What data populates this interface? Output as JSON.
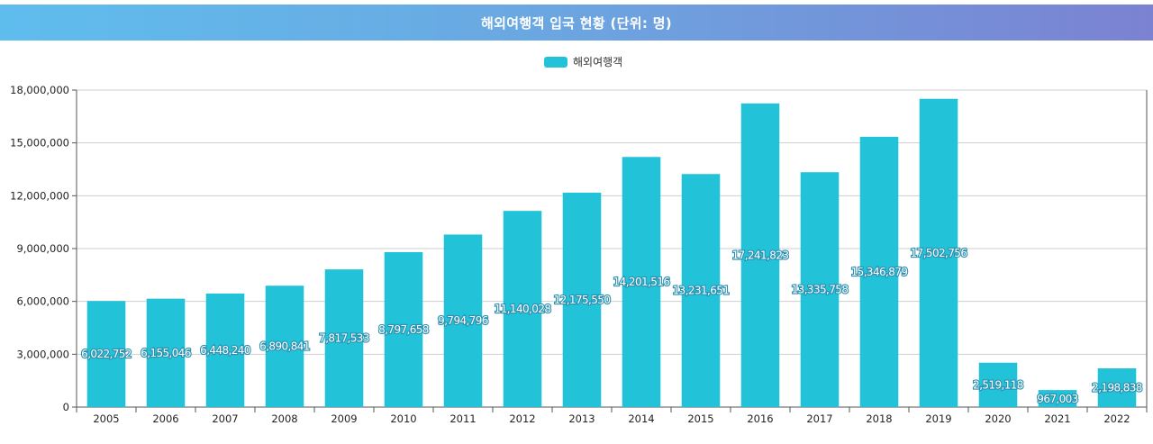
{
  "header": {
    "title": "해외여행객 입국 현황 (단위: 명)"
  },
  "colors": {
    "bar": "#22c3d8",
    "label_stroke": "#2a8fb0",
    "grid": "#cfcfcf",
    "axis": "#555555"
  },
  "chart_data": {
    "type": "bar",
    "title": "해외여행객 입국 현황 (단위: 명)",
    "xlabel": "",
    "ylabel": "",
    "ylim": [
      0,
      18000000
    ],
    "yticks": [
      0,
      3000000,
      6000000,
      9000000,
      12000000,
      15000000,
      18000000
    ],
    "ytick_labels": [
      "0",
      "3,000,000",
      "6,000,000",
      "9,000,000",
      "12,000,000",
      "15,000,000",
      "18,000,000"
    ],
    "legend_position": "top-center",
    "grid": true,
    "categories": [
      "2005",
      "2006",
      "2007",
      "2008",
      "2009",
      "2010",
      "2011",
      "2012",
      "2013",
      "2014",
      "2015",
      "2016",
      "2017",
      "2018",
      "2019",
      "2020",
      "2021",
      "2022"
    ],
    "series": [
      {
        "name": "해외여행객",
        "values": [
          6022752,
          6155046,
          6448240,
          6890841,
          7817533,
          8797658,
          9794796,
          11140028,
          12175550,
          14201516,
          13231651,
          17241823,
          13335758,
          15346879,
          17502756,
          2519118,
          967003,
          2198838
        ],
        "labels": [
          "6,022,752",
          "6,155,046",
          "6,448,240",
          "6,890,841",
          "7,817,533",
          "8,797,658",
          "9,794,796",
          "11,140,028",
          "12,175,550",
          "14,201,516",
          "13,231,651",
          "17,241,823",
          "13,335,758",
          "15,346,879",
          "17,502,756",
          "2,519,118",
          "967,003",
          "2,198,838"
        ]
      }
    ]
  }
}
